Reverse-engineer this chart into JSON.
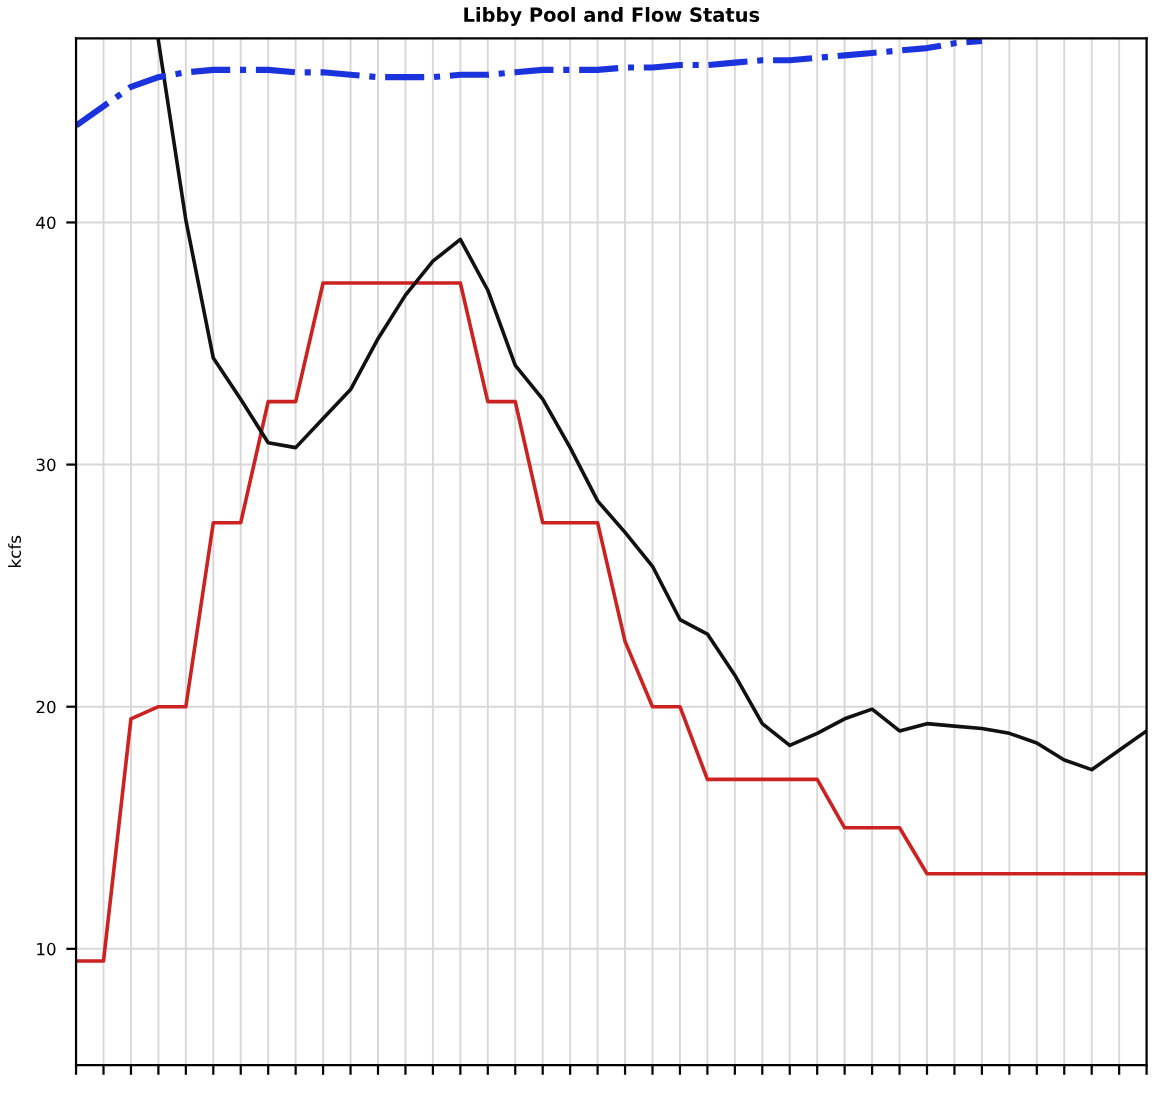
{
  "chart_data": {
    "type": "line",
    "title": "Libby Pool and Flow Status",
    "ylabel": "kcfs",
    "categories": [
      null,
      null,
      null,
      null,
      null,
      null,
      null,
      null,
      null,
      null,
      null,
      null,
      null,
      null,
      null,
      null,
      null,
      null,
      null,
      null,
      null,
      null,
      null,
      null,
      null,
      null,
      null,
      null,
      null,
      null,
      null,
      null,
      null,
      null,
      null,
      null,
      null,
      null,
      null,
      null
    ],
    "ylim": [
      5.2,
      47.6
    ],
    "yticks": [
      10,
      20,
      30,
      40
    ],
    "grid": true,
    "legend": false,
    "marker": "none",
    "series": [
      {
        "color": "#cc2222",
        "line_style": "solid",
        "values": [
          9.5,
          9.5,
          19.5,
          20,
          20,
          27.6,
          27.6,
          32.6,
          32.6,
          37.5,
          37.5,
          37.5,
          37.5,
          37.5,
          37.5,
          32.6,
          32.6,
          27.6,
          27.6,
          27.6,
          22.7,
          20,
          20,
          17,
          17,
          17,
          17,
          17,
          15.0,
          15.0,
          15.0,
          13.1,
          13.1,
          13.1,
          13.1,
          13.1,
          13.1,
          13.1,
          13.1,
          13.1
        ]
      },
      {
        "color": "#111111",
        "line_style": "solid",
        "values": [
          null,
          null,
          null,
          47.5,
          40.1,
          34.4,
          32.7,
          30.9,
          30.7,
          31.9,
          33.1,
          35.2,
          37,
          38.4,
          39.3,
          37.2,
          34.1,
          32.7,
          30.7,
          28.5,
          27.2,
          25.8,
          23.6,
          23.0,
          21.3,
          19.3,
          18.4,
          18.9,
          19.5,
          19.9,
          19.0,
          19.3,
          19.2,
          19.1,
          18.9,
          18.5,
          17.8,
          17.4,
          18.2,
          19.0
        ]
      },
      {
        "color": "#1a33dd",
        "line_style": "dashed",
        "values": [
          44.0,
          44.8,
          45.6,
          46.0,
          46.2,
          46.3,
          46.3,
          46.3,
          46.2,
          46.2,
          46.1,
          46.0,
          46.0,
          46.0,
          46.1,
          46.1,
          46.2,
          46.3,
          46.3,
          46.3,
          46.4,
          46.4,
          46.5,
          46.5,
          46.6,
          46.7,
          46.7,
          46.8,
          46.9,
          47.0,
          47.1,
          47.2,
          47.4,
          47.5,
          null,
          null,
          null,
          null,
          null,
          null
        ]
      }
    ]
  }
}
